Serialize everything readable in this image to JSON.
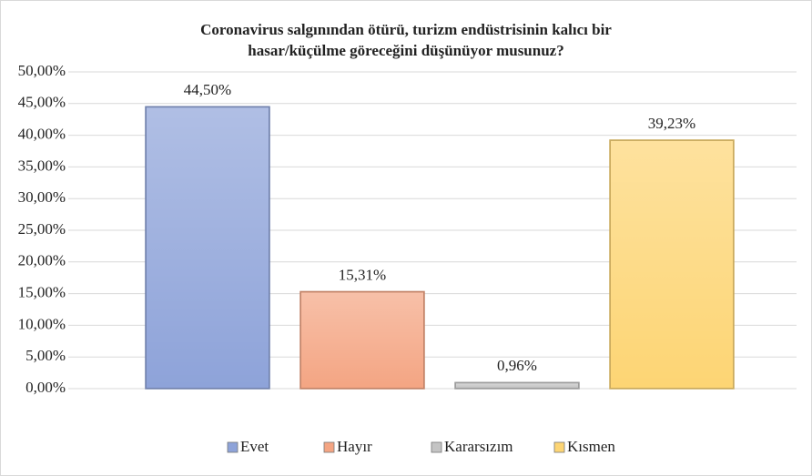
{
  "chart_data": {
    "type": "bar",
    "title": [
      "Coronavirus salgınından ötürü, turizm endüstrisinin kalıcı bir",
      "hasar/küçülme göreceğini düşünüyor musunuz?"
    ],
    "categories": [
      "Evet",
      "Hayır",
      "Kararsızım",
      "Kısmen"
    ],
    "values": [
      44.5,
      15.31,
      0.96,
      39.23
    ],
    "value_labels": [
      "44,50%",
      "15,31%",
      "0,96%",
      "39,23%"
    ],
    "colors": [
      "#8ea3d9",
      "#f4a583",
      "#c4c4c4",
      "#fdd574"
    ],
    "ylim": [
      0,
      50
    ],
    "yticks": [
      {
        "value": 0,
        "label": "0,00%"
      },
      {
        "value": 5,
        "label": "5,00%"
      },
      {
        "value": 10,
        "label": "10,00%"
      },
      {
        "value": 15,
        "label": "15,00%"
      },
      {
        "value": 20,
        "label": "20,00%"
      },
      {
        "value": 25,
        "label": "25,00%"
      },
      {
        "value": 30,
        "label": "30,00%"
      },
      {
        "value": 35,
        "label": "35,00%"
      },
      {
        "value": 40,
        "label": "40,00%"
      },
      {
        "value": 45,
        "label": "45,00%"
      },
      {
        "value": 50,
        "label": "50,00%"
      }
    ],
    "grid": true,
    "legend": "bottom"
  }
}
